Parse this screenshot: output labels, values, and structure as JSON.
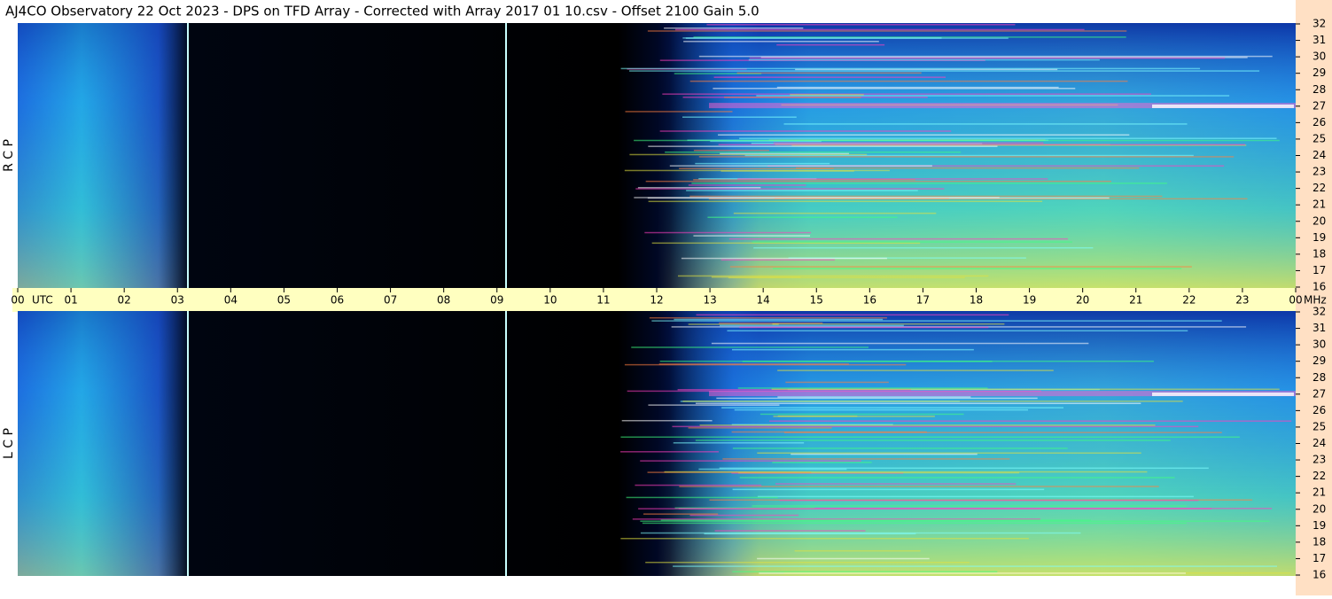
{
  "chart_data": {
    "type": "spectrogram",
    "title": "AJ4CO Observatory  22 Oct 2023  -  DPS on TFD Array  -  Corrected with Array 2017 01 10.csv  -  Offset 2100  Gain 5.0",
    "panels": [
      {
        "label": "R C P"
      },
      {
        "label": "L C P"
      }
    ],
    "x_unit": "UTC",
    "y_unit": "MHz",
    "xlim": [
      0,
      24
    ],
    "xticks": [
      {
        "value": 0,
        "label": "00"
      },
      {
        "value": 1,
        "label": "01"
      },
      {
        "value": 2,
        "label": "02"
      },
      {
        "value": 3,
        "label": "03"
      },
      {
        "value": 4,
        "label": "04"
      },
      {
        "value": 5,
        "label": "05"
      },
      {
        "value": 6,
        "label": "06"
      },
      {
        "value": 7,
        "label": "07"
      },
      {
        "value": 8,
        "label": "08"
      },
      {
        "value": 9,
        "label": "09"
      },
      {
        "value": 10,
        "label": "10"
      },
      {
        "value": 11,
        "label": "11"
      },
      {
        "value": 12,
        "label": "12"
      },
      {
        "value": 13,
        "label": "13"
      },
      {
        "value": 14,
        "label": "14"
      },
      {
        "value": 15,
        "label": "15"
      },
      {
        "value": 16,
        "label": "16"
      },
      {
        "value": 17,
        "label": "17"
      },
      {
        "value": 18,
        "label": "18"
      },
      {
        "value": 19,
        "label": "19"
      },
      {
        "value": 20,
        "label": "20"
      },
      {
        "value": 21,
        "label": "21"
      },
      {
        "value": 22,
        "label": "22"
      },
      {
        "value": 23,
        "label": "23"
      },
      {
        "value": 24,
        "label": "00"
      }
    ],
    "ylim": [
      16,
      32
    ],
    "yticks": [
      16,
      17,
      18,
      19,
      20,
      21,
      22,
      23,
      24,
      25,
      26,
      27,
      28,
      29,
      30,
      31,
      32
    ]
  }
}
